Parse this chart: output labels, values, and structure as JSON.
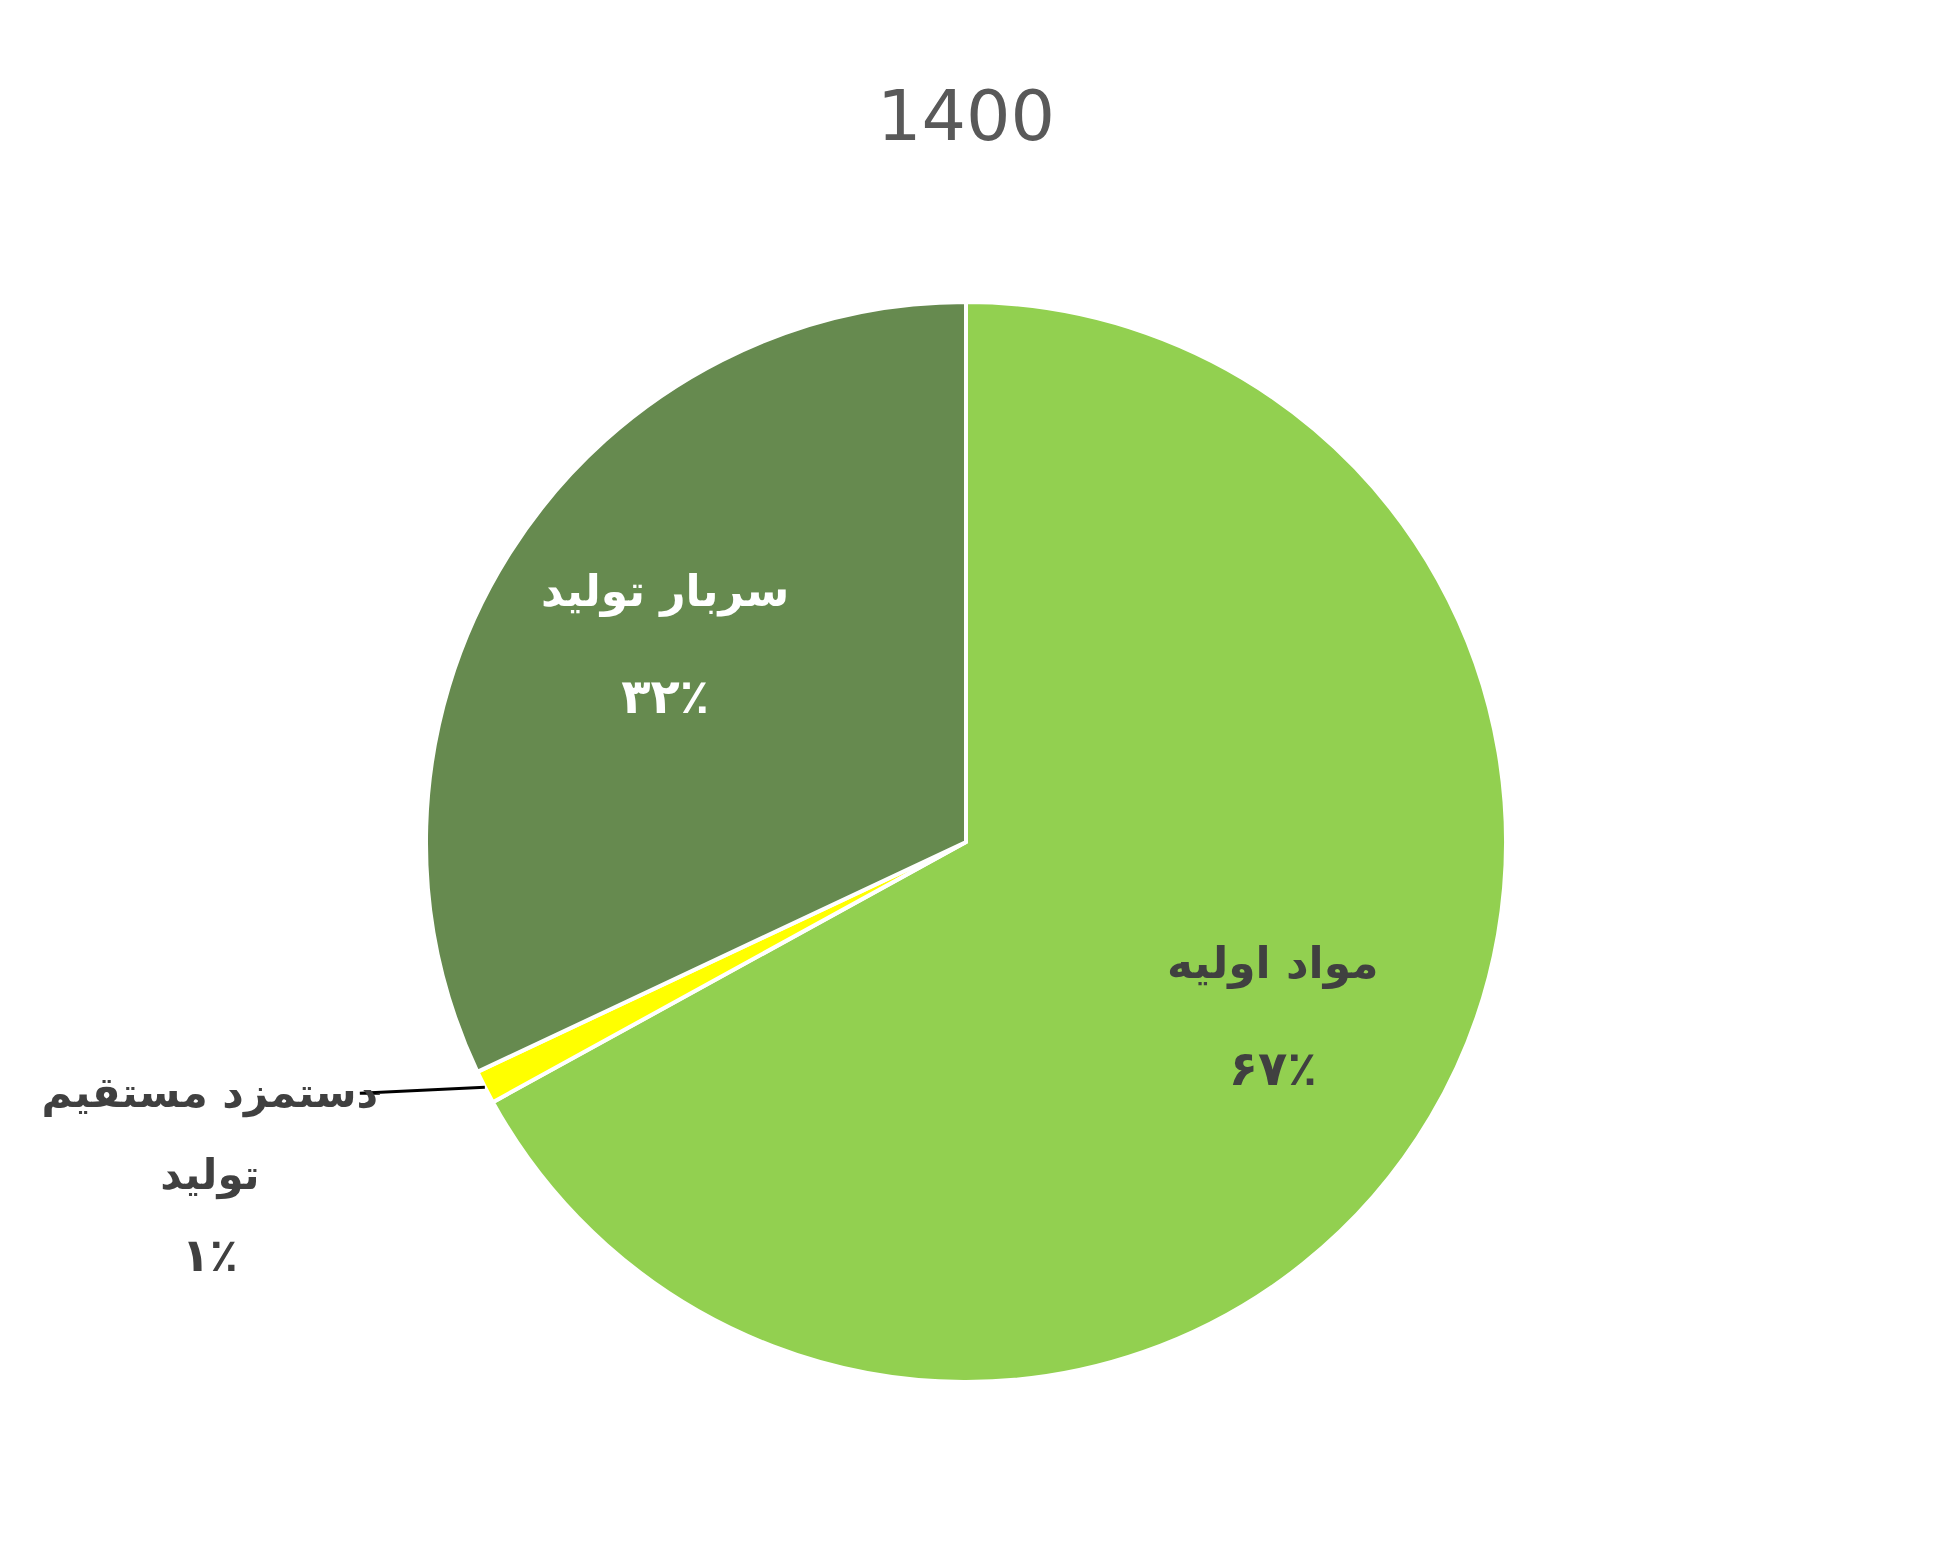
{
  "chart_data": {
    "type": "pie",
    "title": "1400",
    "categories": [
      "مواد اولیه",
      "دستمزد مستقیم تولید",
      "سربار تولید"
    ],
    "values": [
      67,
      1,
      32
    ],
    "colors": [
      "#92d050",
      "#ffff00",
      "#668a4f"
    ],
    "value_labels": [
      "۶۷٪",
      "۱٪",
      "۳۲٪"
    ]
  }
}
